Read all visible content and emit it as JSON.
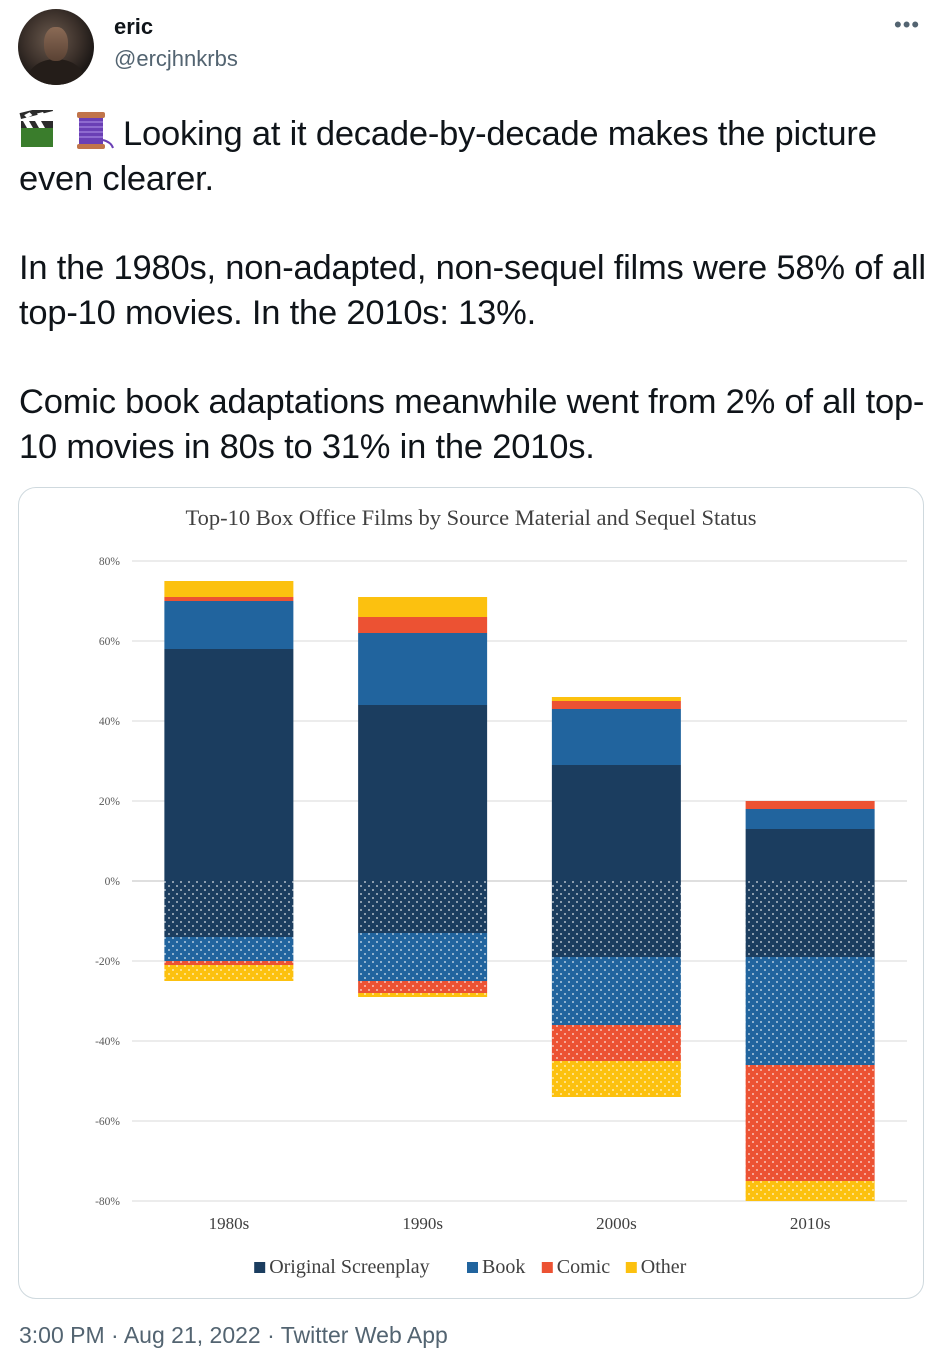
{
  "user": {
    "name": "eric",
    "handle": "@ercjhnkrbs"
  },
  "tweet": {
    "emojis": [
      "clapper-board-emoji",
      "thread-spool-emoji"
    ],
    "paragraphs": [
      "Looking at it decade-by-decade makes the picture even clearer.",
      "In the 1980s, non-adapted, non-sequel films were 58% of all top-10 movies. In the 2010s: 13%.",
      "Comic book adaptations meanwhile went from 2% of all top-10 movies in 80s to 31% in the 2010s."
    ]
  },
  "footer": {
    "time": "3:00 PM",
    "separator": "·",
    "date": "Aug 21, 2022",
    "source": "Twitter Web App"
  },
  "colors": {
    "original": "#1b3d5f",
    "book": "#21649e",
    "comic": "#ec5233",
    "other": "#fcc10f"
  },
  "chart_data": {
    "type": "bar",
    "stacked": true,
    "diverging": true,
    "title": "Top-10 Box Office Films by Source Material and Sequel Status",
    "categories": [
      "1980s",
      "1990s",
      "2000s",
      "2010s"
    ],
    "ylim": [
      -80,
      80
    ],
    "yticks": [
      80,
      60,
      40,
      20,
      0,
      -20,
      -40,
      -60,
      -80
    ],
    "ytick_labels": [
      "80%",
      "60%",
      "40%",
      "20%",
      "0%",
      "-20%",
      "-40%",
      "-60%",
      "-80%"
    ],
    "grid": true,
    "legend_position": "bottom",
    "series": [
      {
        "name": "Original Screenplay",
        "color": "#1b3d5f",
        "values": [
          58,
          44,
          29,
          13
        ],
        "negative_values": [
          -14,
          -13,
          -19,
          -19
        ]
      },
      {
        "name": "Book",
        "color": "#21649e",
        "values": [
          12,
          18,
          14,
          5
        ],
        "negative_values": [
          -6,
          -12,
          -17,
          -27
        ]
      },
      {
        "name": "Comic",
        "color": "#ec5233",
        "values": [
          1,
          4,
          2,
          2
        ],
        "negative_values": [
          -1,
          -3,
          -9,
          -29
        ]
      },
      {
        "name": "Other",
        "color": "#fcc10f",
        "values": [
          4,
          5,
          1,
          0
        ],
        "negative_values": [
          -4,
          -1,
          -9,
          -5
        ]
      }
    ]
  }
}
